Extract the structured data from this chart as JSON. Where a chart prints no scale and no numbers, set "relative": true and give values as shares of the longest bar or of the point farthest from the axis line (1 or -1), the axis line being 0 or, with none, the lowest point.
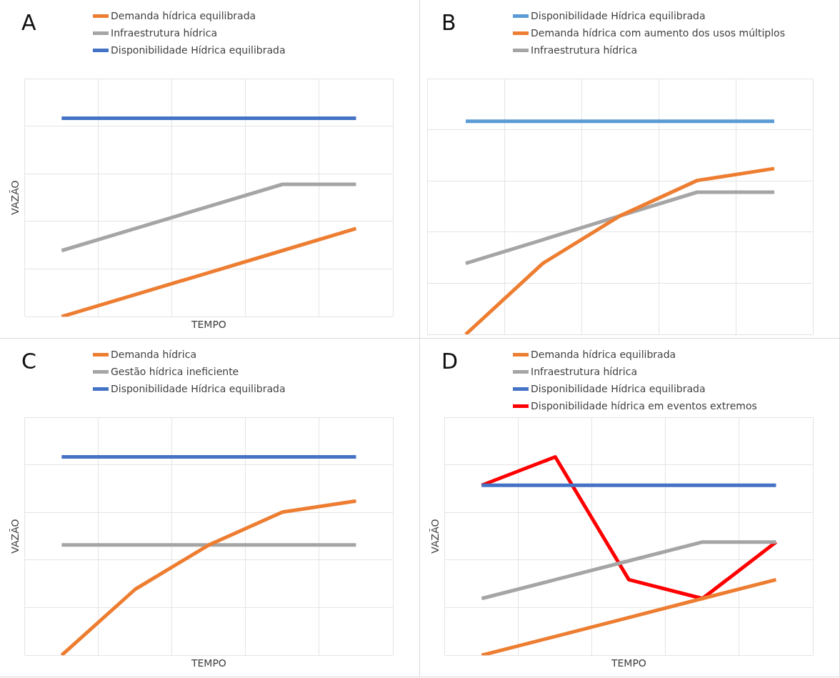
{
  "chart_data": [
    {
      "type": "line",
      "title": "A",
      "xlabel": "TEMPO",
      "ylabel": "VAZÃO",
      "relative": true,
      "grid": true,
      "legend": "top",
      "marker": "none",
      "tick_labels": false,
      "categories": [
        null,
        null,
        null,
        null,
        null
      ],
      "series": [
        {
          "name": "Demanda hídrica equilibrada",
          "color": "#ed7d31",
          "values": [
            0,
            0.111,
            0.222,
            0.333,
            0.444
          ]
        },
        {
          "name": "Infraestrutura hídrica",
          "color": "#a5a5a5",
          "values": [
            0.333,
            0.444,
            0.556,
            0.667,
            0.667
          ]
        },
        {
          "name": "Disponibilidade Hídrica equilibrada",
          "color": "#4472c4",
          "values": [
            1,
            1,
            1,
            1,
            1
          ]
        }
      ]
    },
    {
      "type": "line",
      "title": "B",
      "relative": true,
      "grid": true,
      "legend": "top",
      "marker": "none",
      "tick_labels": false,
      "categories": [
        null,
        null,
        null,
        null,
        null
      ],
      "series": [
        {
          "name": "Disponibilidade Hídrica equilibrada",
          "color": "#5b9bd5",
          "values": [
            1,
            1,
            1,
            1,
            1
          ]
        },
        {
          "name": "Demanda hídrica com aumento dos usos múltiplos",
          "color": "#ed7d31",
          "values": [
            0,
            0.333,
            0.556,
            0.722,
            0.778
          ]
        },
        {
          "name": "Infraestrutura hídrica",
          "color": "#a5a5a5",
          "values": [
            0.333,
            0.444,
            0.556,
            0.667,
            0.667
          ]
        }
      ]
    },
    {
      "type": "line",
      "title": "C",
      "xlabel": "TEMPO",
      "ylabel": "VAZÃO",
      "relative": true,
      "grid": true,
      "legend": "top",
      "marker": "none",
      "tick_labels": false,
      "categories": [
        null,
        null,
        null,
        null,
        null
      ],
      "series": [
        {
          "name": "Demanda hídrica",
          "color": "#ed7d31",
          "values": [
            0,
            0.333,
            0.556,
            0.722,
            0.778
          ]
        },
        {
          "name": "Gestão hídrica ineficiente",
          "color": "#a5a5a5",
          "values": [
            0.556,
            0.556,
            0.556,
            0.556,
            0.556
          ]
        },
        {
          "name": "Disponibilidade Hídrica equilibrada",
          "color": "#4472c4",
          "values": [
            1,
            1,
            1,
            1,
            1
          ]
        }
      ]
    },
    {
      "type": "line",
      "title": "D",
      "xlabel": "TEMPO",
      "ylabel": "VAZÃO",
      "relative": true,
      "grid": true,
      "legend": "top",
      "marker": "none",
      "tick_labels": false,
      "categories": [
        null,
        null,
        null,
        null,
        null
      ],
      "series": [
        {
          "name": "Demanda hídrica equilibrada",
          "color": "#ed7d31",
          "values": [
            0,
            0.095,
            0.19,
            0.286,
            0.381
          ]
        },
        {
          "name": "Infraestrutura hídrica",
          "color": "#a5a5a5",
          "values": [
            0.286,
            0.381,
            0.476,
            0.571,
            0.571
          ]
        },
        {
          "name": "Disponibilidade Hídrica equilibrada",
          "color": "#4472c4",
          "values": [
            0.857,
            0.857,
            0.857,
            0.857,
            0.857
          ]
        },
        {
          "name": "Disponibilidade hídrica em eventos extremos",
          "color": "#ff0000",
          "values": [
            0.857,
            1,
            0.381,
            0.286,
            0.571
          ]
        }
      ]
    }
  ]
}
